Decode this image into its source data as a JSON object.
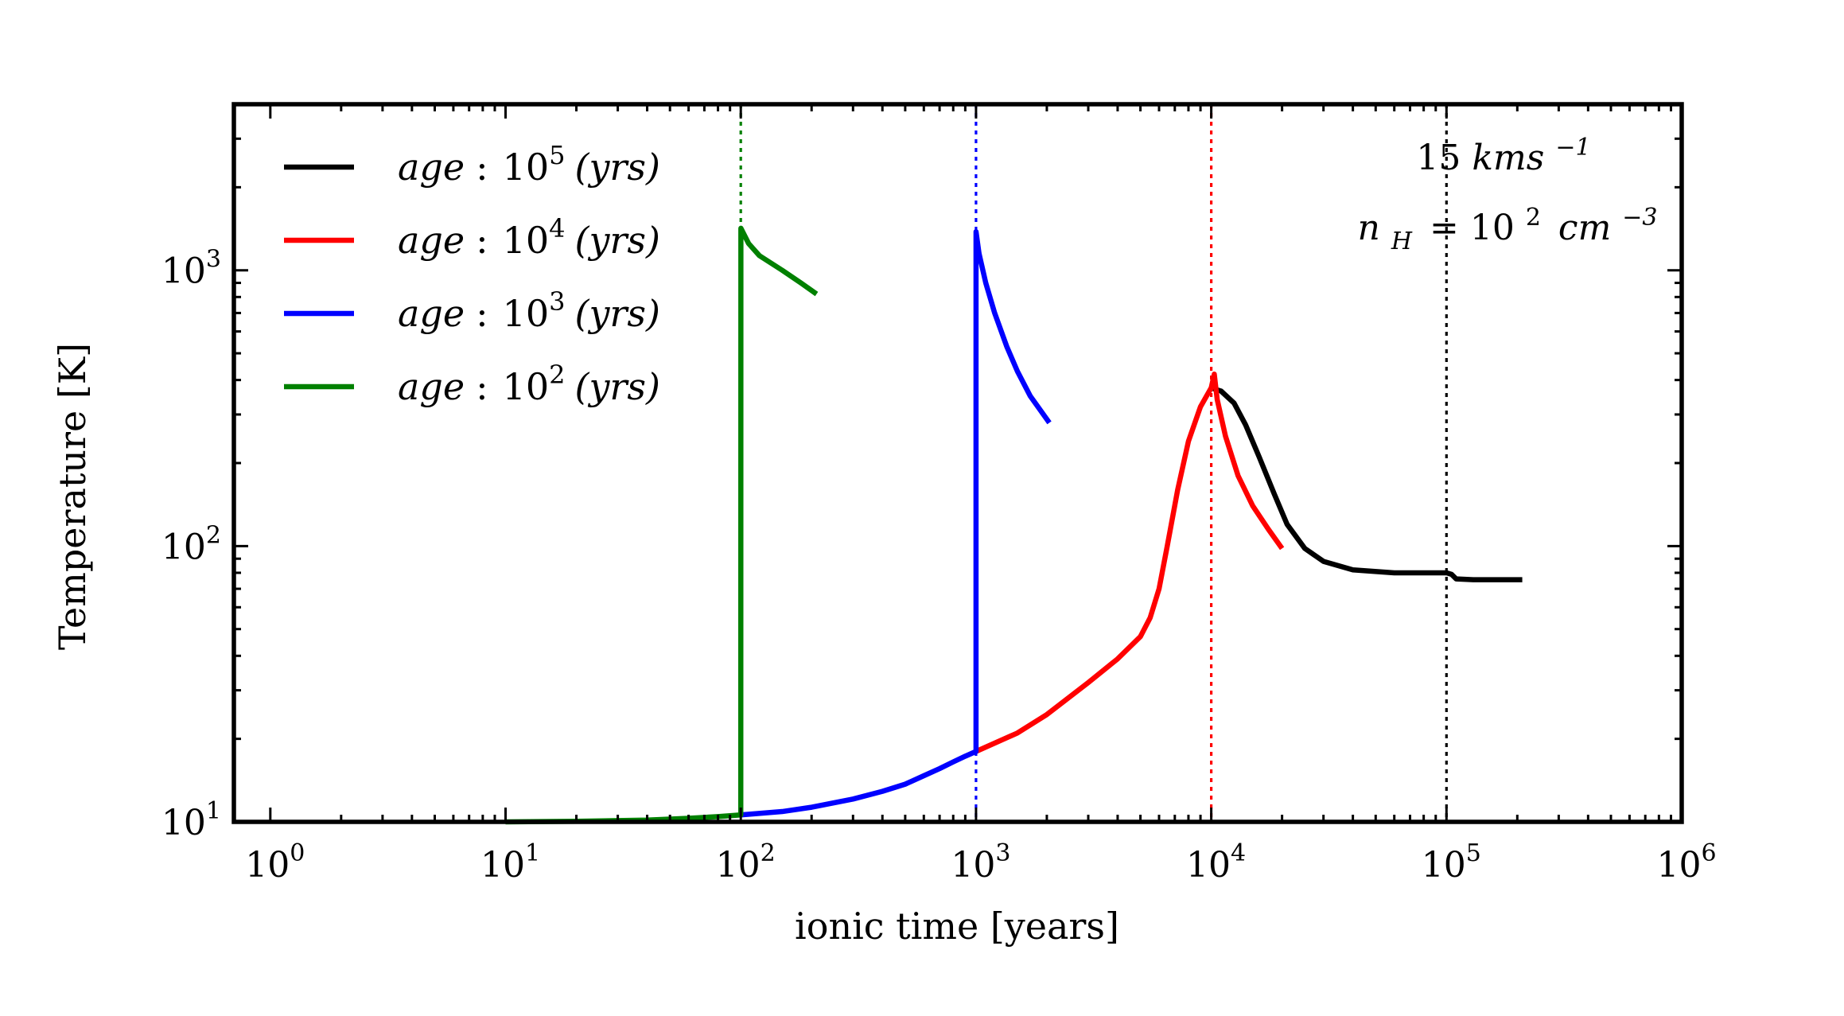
{
  "chart_data": {
    "type": "line",
    "title": "",
    "xlabel": "ionic time [years]",
    "ylabel": "Temperature [K]",
    "xscale": "log",
    "yscale": "log",
    "xlim": [
      0.7,
      1000000
    ],
    "ylim": [
      10,
      4000
    ],
    "x_ticks": [
      {
        "value": 1,
        "base": "10",
        "exp": "0"
      },
      {
        "value": 10,
        "base": "10",
        "exp": "1"
      },
      {
        "value": 100,
        "base": "10",
        "exp": "2"
      },
      {
        "value": 1000,
        "base": "10",
        "exp": "3"
      },
      {
        "value": 10000,
        "base": "10",
        "exp": "4"
      },
      {
        "value": 100000,
        "base": "10",
        "exp": "5"
      },
      {
        "value": 1000000,
        "base": "10",
        "exp": "6"
      }
    ],
    "y_ticks": [
      {
        "value": 10,
        "base": "10",
        "exp": "1"
      },
      {
        "value": 100,
        "base": "10",
        "exp": "2"
      },
      {
        "value": 1000,
        "base": "10",
        "exp": "3"
      }
    ],
    "legend_position": "top-left",
    "annotation": {
      "line1_num": "15",
      "line1_unit": "kms",
      "line1_exp": "−1",
      "line2_var": "n",
      "line2_sub": "H",
      "line2_eq": "= 10",
      "line2_exp1": "2",
      "line2_unit": "cm",
      "line2_exp2": "−3"
    },
    "series": [
      {
        "name": "age : 10^5 (yrs)",
        "legend": {
          "prefix": "age",
          "colon": ":",
          "base": "10",
          "exp": "5",
          "suffix": "(yrs)"
        },
        "color": "#000000",
        "age": 100000,
        "points": [
          [
            10200,
            372
          ],
          [
            11000,
            365
          ],
          [
            12500,
            330
          ],
          [
            14000,
            275
          ],
          [
            16000,
            210
          ],
          [
            18500,
            155
          ],
          [
            21000,
            120
          ],
          [
            25000,
            98
          ],
          [
            30000,
            88
          ],
          [
            40000,
            82
          ],
          [
            60000,
            80
          ],
          [
            90000,
            80
          ],
          [
            100000,
            80
          ],
          [
            105000,
            79
          ],
          [
            110000,
            76
          ],
          [
            130000,
            75.5
          ],
          [
            210000,
            75.5
          ]
        ]
      },
      {
        "name": "age : 10^4 (yrs)",
        "legend": {
          "prefix": "age",
          "colon": ":",
          "base": "10",
          "exp": "4",
          "suffix": "(yrs)"
        },
        "color": "#ff0000",
        "age": 10000,
        "points": [
          [
            1000,
            18
          ],
          [
            1500,
            21
          ],
          [
            2000,
            24.5
          ],
          [
            3000,
            32
          ],
          [
            4000,
            39
          ],
          [
            5000,
            47
          ],
          [
            5500,
            55
          ],
          [
            6000,
            70
          ],
          [
            6500,
            100
          ],
          [
            7200,
            160
          ],
          [
            8000,
            240
          ],
          [
            9000,
            320
          ],
          [
            10000,
            375
          ],
          [
            10300,
            420
          ],
          [
            10600,
            340
          ],
          [
            11500,
            250
          ],
          [
            13000,
            180
          ],
          [
            15000,
            140
          ],
          [
            17500,
            115
          ],
          [
            20000,
            98
          ]
        ]
      },
      {
        "name": "age : 10^3 (yrs)",
        "legend": {
          "prefix": "age",
          "colon": ":",
          "base": "10",
          "exp": "3",
          "suffix": "(yrs)"
        },
        "color": "#0000ff",
        "age": 1000,
        "points": [
          [
            100,
            10.6
          ],
          [
            150,
            10.9
          ],
          [
            200,
            11.3
          ],
          [
            300,
            12.1
          ],
          [
            400,
            12.9
          ],
          [
            500,
            13.7
          ],
          [
            600,
            14.7
          ],
          [
            700,
            15.6
          ],
          [
            800,
            16.5
          ],
          [
            900,
            17.3
          ],
          [
            1000,
            18
          ],
          [
            1000.1,
            1380
          ],
          [
            1030,
            1150
          ],
          [
            1100,
            900
          ],
          [
            1200,
            700
          ],
          [
            1350,
            530
          ],
          [
            1500,
            430
          ],
          [
            1700,
            350
          ],
          [
            2050,
            280
          ]
        ]
      },
      {
        "name": "age : 10^2 (yrs)",
        "legend": {
          "prefix": "age",
          "colon": ":",
          "base": "10",
          "exp": "2",
          "suffix": "(yrs)"
        },
        "color": "#008000",
        "age": 100,
        "points": [
          [
            10,
            10
          ],
          [
            20,
            10.05
          ],
          [
            40,
            10.15
          ],
          [
            60,
            10.3
          ],
          [
            80,
            10.45
          ],
          [
            100,
            10.6
          ],
          [
            100.1,
            1420
          ],
          [
            108,
            1250
          ],
          [
            120,
            1130
          ],
          [
            150,
            1000
          ],
          [
            180,
            900
          ],
          [
            210,
            820
          ]
        ]
      }
    ]
  }
}
